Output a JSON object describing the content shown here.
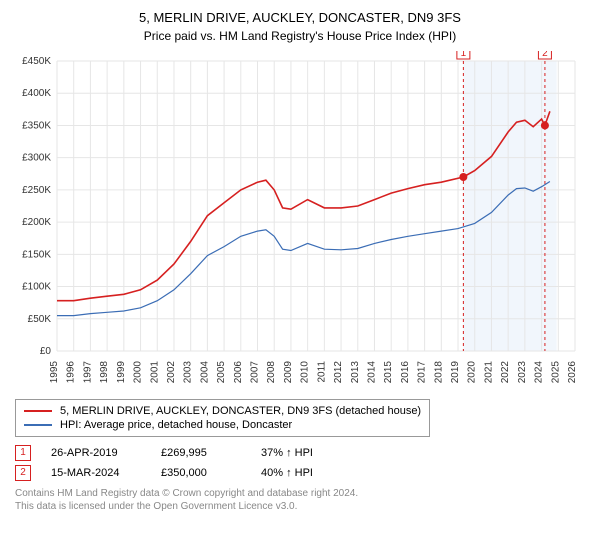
{
  "title": "5, MERLIN DRIVE, AUCKLEY, DONCASTER, DN9 3FS",
  "subtitle": "Price paid vs. HM Land Registry's House Price Index (HPI)",
  "chart": {
    "type": "line",
    "background_color": "#ffffff",
    "grid_color": "#e6e6e6",
    "ylim": [
      0,
      450000
    ],
    "ytick_step": 50000,
    "ylabels": [
      "£0",
      "£50K",
      "£100K",
      "£150K",
      "£200K",
      "£250K",
      "£300K",
      "£350K",
      "£400K",
      "£450K"
    ],
    "x_years": [
      1995,
      1996,
      1997,
      1998,
      1999,
      2000,
      2001,
      2002,
      2003,
      2004,
      2005,
      2006,
      2007,
      2008,
      2009,
      2010,
      2011,
      2012,
      2013,
      2014,
      2015,
      2016,
      2017,
      2018,
      2019,
      2020,
      2021,
      2022,
      2023,
      2024,
      2025,
      2026
    ],
    "series": [
      {
        "name": "5, MERLIN DRIVE, AUCKLEY, DONCASTER, DN9 3FS (detached house)",
        "color": "#d62020",
        "line_width": 1.6,
        "data": [
          [
            1995,
            78000
          ],
          [
            1996,
            78000
          ],
          [
            1997,
            82000
          ],
          [
            1998,
            85000
          ],
          [
            1999,
            88000
          ],
          [
            2000,
            95000
          ],
          [
            2001,
            110000
          ],
          [
            2002,
            135000
          ],
          [
            2003,
            170000
          ],
          [
            2004,
            210000
          ],
          [
            2005,
            230000
          ],
          [
            2006,
            250000
          ],
          [
            2007,
            262000
          ],
          [
            2007.5,
            265000
          ],
          [
            2008,
            250000
          ],
          [
            2008.5,
            222000
          ],
          [
            2009,
            220000
          ],
          [
            2010,
            235000
          ],
          [
            2011,
            222000
          ],
          [
            2012,
            222000
          ],
          [
            2013,
            225000
          ],
          [
            2014,
            235000
          ],
          [
            2015,
            245000
          ],
          [
            2016,
            252000
          ],
          [
            2017,
            258000
          ],
          [
            2018,
            262000
          ],
          [
            2019.32,
            269995
          ],
          [
            2020,
            280000
          ],
          [
            2021,
            302000
          ],
          [
            2022,
            340000
          ],
          [
            2022.5,
            355000
          ],
          [
            2023,
            358000
          ],
          [
            2023.5,
            348000
          ],
          [
            2024,
            360000
          ],
          [
            2024.2,
            350000
          ],
          [
            2024.5,
            372000
          ]
        ]
      },
      {
        "name": "HPI: Average price, detached house, Doncaster",
        "color": "#3b6db5",
        "line_width": 1.2,
        "data": [
          [
            1995,
            55000
          ],
          [
            1996,
            55000
          ],
          [
            1997,
            58000
          ],
          [
            1998,
            60000
          ],
          [
            1999,
            62000
          ],
          [
            2000,
            67000
          ],
          [
            2001,
            78000
          ],
          [
            2002,
            95000
          ],
          [
            2003,
            120000
          ],
          [
            2004,
            148000
          ],
          [
            2005,
            162000
          ],
          [
            2006,
            178000
          ],
          [
            2007,
            186000
          ],
          [
            2007.5,
            188000
          ],
          [
            2008,
            178000
          ],
          [
            2008.5,
            158000
          ],
          [
            2009,
            156000
          ],
          [
            2010,
            167000
          ],
          [
            2011,
            158000
          ],
          [
            2012,
            157000
          ],
          [
            2013,
            159000
          ],
          [
            2014,
            167000
          ],
          [
            2015,
            173000
          ],
          [
            2016,
            178000
          ],
          [
            2017,
            182000
          ],
          [
            2018,
            186000
          ],
          [
            2019,
            190000
          ],
          [
            2020,
            198000
          ],
          [
            2021,
            215000
          ],
          [
            2022,
            242000
          ],
          [
            2022.5,
            252000
          ],
          [
            2023,
            253000
          ],
          [
            2023.5,
            248000
          ],
          [
            2024,
            255000
          ],
          [
            2024.5,
            263000
          ]
        ]
      }
    ],
    "events": [
      {
        "label": "1",
        "year": 2019.32,
        "value": 269995,
        "color": "#d62020",
        "shade_to": 2024.2
      },
      {
        "label": "2",
        "year": 2024.2,
        "value": 350000,
        "color": "#d62020",
        "shade_to": 2024.9
      }
    ],
    "marker_box_size": 13
  },
  "legend": [
    {
      "color": "#d62020",
      "label": "5, MERLIN DRIVE, AUCKLEY, DONCASTER, DN9 3FS (detached house)"
    },
    {
      "color": "#3b6db5",
      "label": "HPI: Average price, detached house, Doncaster"
    }
  ],
  "sales": [
    {
      "label": "1",
      "color": "#d62020",
      "date": "26-APR-2019",
      "price": "£269,995",
      "delta": "37% ↑ HPI"
    },
    {
      "label": "2",
      "color": "#d62020",
      "date": "15-MAR-2024",
      "price": "£350,000",
      "delta": "40% ↑ HPI"
    }
  ],
  "footer_line1": "Contains HM Land Registry data © Crown copyright and database right 2024.",
  "footer_line2": "This data is licensed under the Open Government Licence v3.0."
}
